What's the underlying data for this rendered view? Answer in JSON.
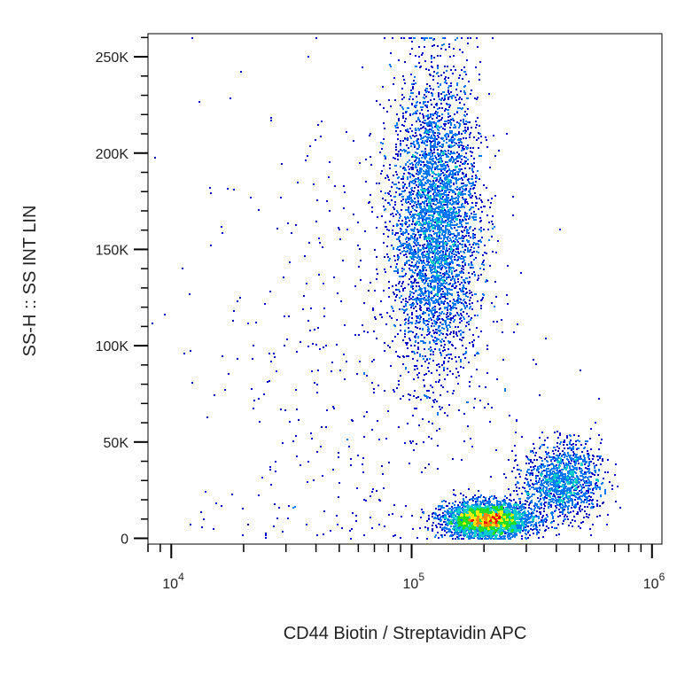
{
  "chart_data": {
    "type": "scatter",
    "subtype": "flow-cytometry density dot plot",
    "xlabel": "CD44 Biotin / Streptavidin APC",
    "ylabel": "SS-H :: SS INT LIN",
    "x_scale": "log",
    "xlim": [
      8000,
      1100000
    ],
    "ylim": [
      -3000,
      262000
    ],
    "x_ticks": [
      {
        "value": 10000,
        "base": "10",
        "exp": "4"
      },
      {
        "value": 100000,
        "base": "10",
        "exp": "5"
      },
      {
        "value": 1000000,
        "base": "10",
        "exp": "6"
      }
    ],
    "y_ticks": [
      {
        "value": 0,
        "label": "0"
      },
      {
        "value": 50000,
        "label": "50K"
      },
      {
        "value": 100000,
        "label": "100K"
      },
      {
        "value": 150000,
        "label": "150K"
      },
      {
        "value": 200000,
        "label": "200K"
      },
      {
        "value": 250000,
        "label": "250K"
      }
    ],
    "populations": [
      {
        "x_center": 125000,
        "x_log_sd": 0.09,
        "y_center": 165000,
        "y_sd": 38000,
        "count": 4200
      },
      {
        "x_center": 205000,
        "x_log_sd": 0.09,
        "y_center": 10000,
        "y_sd": 4500,
        "count": 3200
      },
      {
        "x_center": 420000,
        "x_log_sd": 0.08,
        "y_center": 30000,
        "y_sd": 10000,
        "count": 1300
      },
      {
        "x_center": 60000,
        "x_log_sd": 0.35,
        "y_center": 90000,
        "y_sd": 70000,
        "count": 450
      }
    ],
    "density_colors": [
      "#0000cc",
      "#0077ff",
      "#00cccc",
      "#22dd22",
      "#ffee00",
      "#ff8800",
      "#ff0000"
    ],
    "grid": false,
    "legend": "none"
  }
}
